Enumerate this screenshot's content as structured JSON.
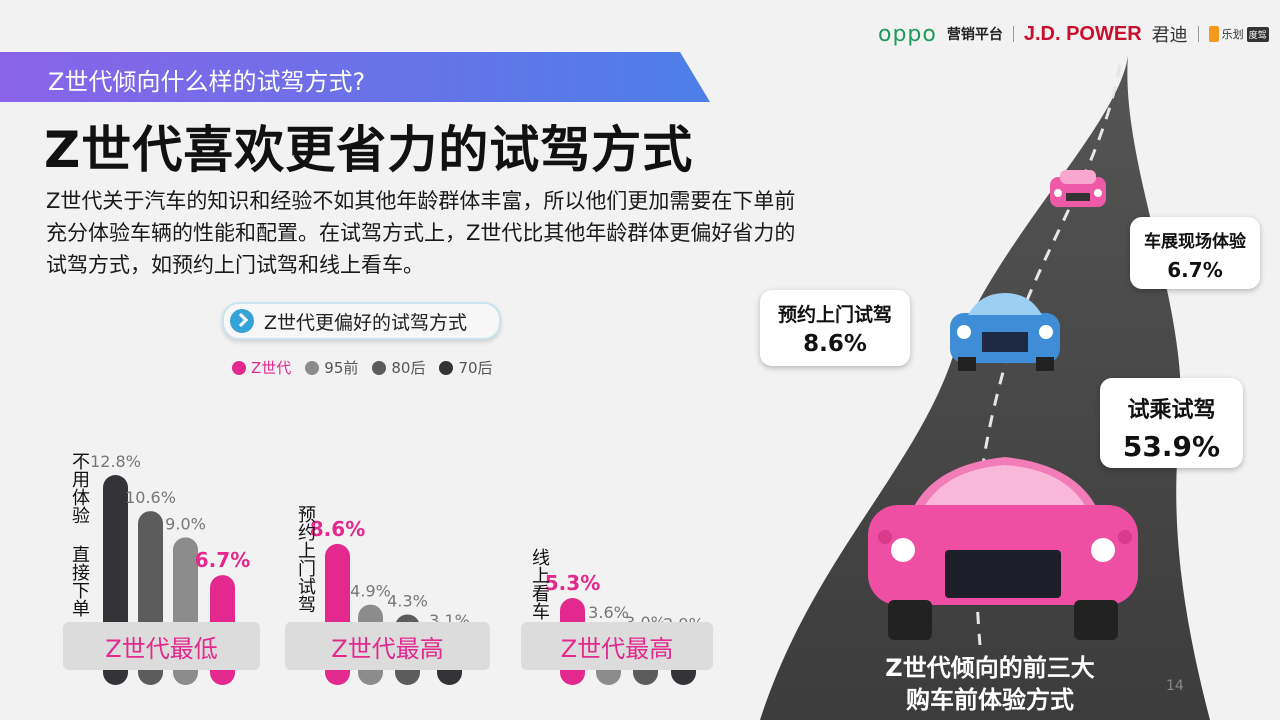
{
  "header": {
    "banner_text": "Z世代倾向什么样的试驾方式?",
    "logos": {
      "oppo": "oppo",
      "yingxiao": "营销平台",
      "jdpower": "J.D. POWER",
      "jundi": "君迪",
      "lecar": "乐划",
      "lecar_tag": "度驾"
    }
  },
  "headline": "Z世代喜欢更省力的试驾方式",
  "paragraph": "Z世代关于汽车的知识和经验不如其他年龄群体丰富，所以他们更加需要在下单前充分体验车辆的性能和配置。在试驾方式上，Z世代比其他年龄群体更偏好省力的试驾方式，如预约上门试驾和线上看车。",
  "pill_label": "Z世代更偏好的试驾方式",
  "colors": {
    "genz": "#e3298e",
    "p95": "#8c8c8c",
    "p80": "#5c5c5c",
    "p70": "#333338"
  },
  "chart_data": {
    "type": "bar",
    "title": "Z世代更偏好的试驾方式",
    "legend": [
      "Z世代",
      "95前",
      "80后",
      "70后"
    ],
    "groups": [
      {
        "category": "不用体验 直接下单",
        "caption": "Z世代最低",
        "series": [
          {
            "name": "70后",
            "value": 12.8,
            "label": "12.8%"
          },
          {
            "name": "80后",
            "value": 10.6,
            "label": "10.6%"
          },
          {
            "name": "95前",
            "value": 9.0,
            "label": "9.0%"
          },
          {
            "name": "Z世代",
            "value": 6.7,
            "label": "6.7%"
          }
        ]
      },
      {
        "category": "预约上门试驾",
        "caption": "Z世代最高",
        "series": [
          {
            "name": "Z世代",
            "value": 8.6,
            "label": "8.6%"
          },
          {
            "name": "95前",
            "value": 4.9,
            "label": "4.9%"
          },
          {
            "name": "80后",
            "value": 4.3,
            "label": "4.3%"
          },
          {
            "name": "70后",
            "value": 3.1,
            "label": "3.1%"
          }
        ]
      },
      {
        "category": "线上看车",
        "caption": "Z世代最高",
        "series": [
          {
            "name": "Z世代",
            "value": 5.3,
            "label": "5.3%"
          },
          {
            "name": "95前",
            "value": 3.6,
            "label": "3.6%"
          },
          {
            "name": "80后",
            "value": 3.0,
            "label": "3.0%"
          },
          {
            "name": "70后",
            "value": 2.9,
            "label": "2.9%"
          }
        ]
      }
    ]
  },
  "illustration": {
    "bubbles": [
      {
        "label": "车展现场体验",
        "value": "6.7%"
      },
      {
        "label": "预约上门试驾",
        "value": "8.6%"
      },
      {
        "label": "试乘试驾",
        "value": "53.9%"
      }
    ],
    "footer_line1": "Z世代倾向的前三大",
    "footer_line2": "购车前体验方式"
  },
  "page_number": "14"
}
